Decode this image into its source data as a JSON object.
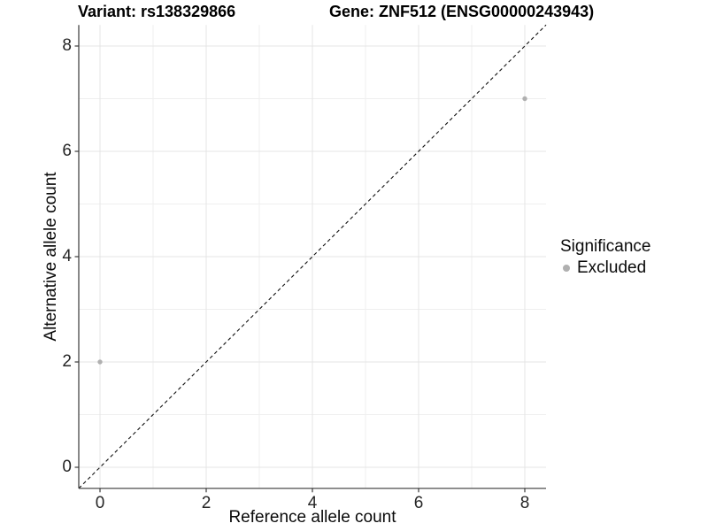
{
  "chart_data": {
    "type": "scatter",
    "title_left": "Variant: rs138329866",
    "title_right": "Gene: ZNF512 (ENSG00000243943)",
    "xlabel": "Reference allele count",
    "ylabel": "Alternative allele count",
    "xlim": [
      -0.4,
      8.4
    ],
    "ylim": [
      -0.4,
      8.4
    ],
    "x_major_ticks": [
      0,
      2,
      4,
      6,
      8
    ],
    "y_major_ticks": [
      0,
      2,
      4,
      6,
      8
    ],
    "x_minor_gridlines": [
      1,
      3,
      5,
      7
    ],
    "y_minor_gridlines": [
      1,
      3,
      5,
      7
    ],
    "grid": "on",
    "reference_line": {
      "kind": "identity y=x",
      "linestyle": "dashed",
      "color": "#111111"
    },
    "series": [
      {
        "name": "Excluded",
        "color": "#b0b0b0",
        "marker": "circle",
        "points": [
          [
            0,
            2
          ],
          [
            8,
            7
          ]
        ]
      }
    ],
    "legend": {
      "title": "Significance",
      "position": "right",
      "items": [
        {
          "label": "Excluded",
          "color": "#b0b0b0",
          "marker": "circle"
        }
      ]
    },
    "style": {
      "background": "#ffffff",
      "grid_major_color": "#e4e4e4",
      "grid_minor_color": "#efefef",
      "axis_line_color": "#3a3a3a",
      "tick_label_color": "#262626"
    }
  }
}
